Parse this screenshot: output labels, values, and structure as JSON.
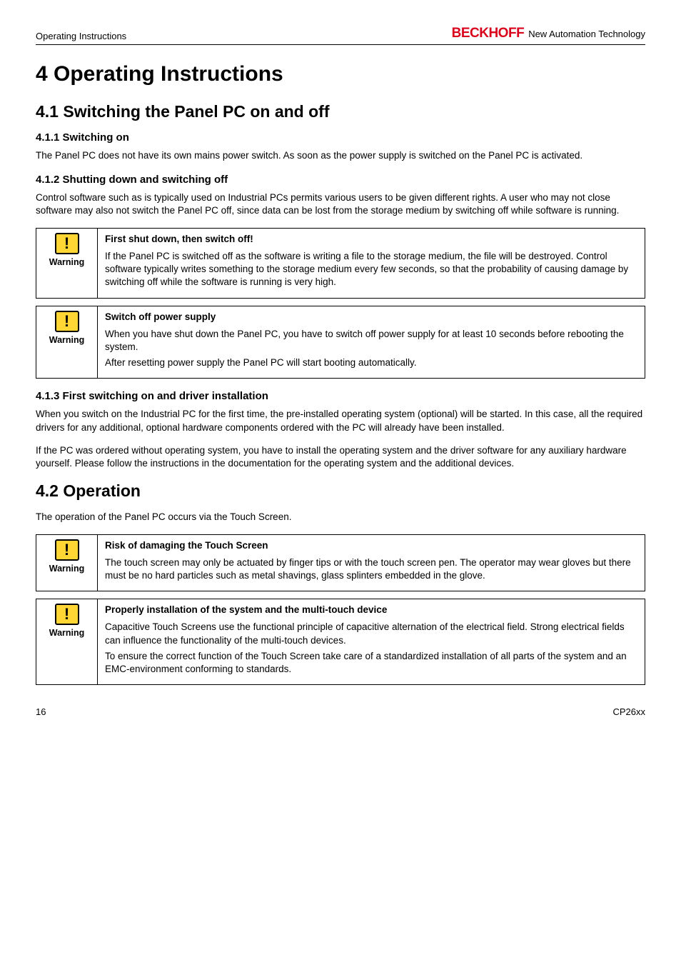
{
  "header": {
    "left": "Operating Instructions",
    "brand": "BECKHOFF",
    "tagline": "New Automation Technology"
  },
  "chapter": {
    "title": "4  Operating Instructions"
  },
  "section_41": {
    "title": "4.1 Switching the Panel PC on and off",
    "sub_411": {
      "title": "4.1.1  Switching on",
      "p1": "The Panel PC does not have its own mains power switch. As soon as the power supply is switched on the Panel PC is activated."
    },
    "sub_412": {
      "title": "4.1.2  Shutting down and switching off",
      "p1": "Control software such as is typically used on Industrial PCs permits various users to be given different rights. A user who may not close software may also not switch the Panel PC off, since data can be lost from the storage medium by switching off while software is running.",
      "warn1": {
        "label": "Warning",
        "title": "First shut down, then switch off!",
        "body": "If the Panel PC is switched off as the software is writing a file to the storage medium, the file will be destroyed. Control software typically writes something to the storage medium every few seconds, so that the probability of causing damage by switching off while the software is running is very high."
      },
      "warn2": {
        "label": "Warning",
        "title": "Switch off power supply",
        "body1": "When you have shut down the Panel PC, you have to switch off power supply for at least 10 seconds before rebooting the system.",
        "body2": "After resetting power supply the Panel PC will start booting automatically."
      }
    },
    "sub_413": {
      "title": "4.1.3  First switching on and driver installation",
      "p1": "When you switch on the Industrial PC for the first time, the pre-installed operating system (optional) will be started. In this case, all the required drivers for any additional, optional hardware components ordered with the PC will already have been installed.",
      "p2": "If the PC was ordered without operating system, you have to install the operating system and the driver software for any auxiliary hardware yourself. Please follow the instructions in the documentation for the operating system and the additional devices."
    }
  },
  "section_42": {
    "title": "4.2 Operation",
    "p1": "The operation of the Panel PC occurs via the Touch Screen.",
    "warn1": {
      "label": "Warning",
      "title": "Risk of damaging the Touch Screen",
      "body": "The touch screen may only be actuated by finger tips or with the touch screen pen. The operator may wear gloves but there must be no hard particles such as metal shavings, glass splinters embedded in the glove."
    },
    "warn2": {
      "label": "Warning",
      "title": "Properly installation of the system and the multi-touch device",
      "body1": "Capacitive Touch Screens use the functional principle of capacitive alternation of the electrical field. Strong electrical fields can influence the functionality of the multi-touch devices.",
      "body2": "To ensure the correct function of the Touch Screen take care of a standardized installation of all parts of the system and an EMC-environment conforming to standards."
    }
  },
  "footer": {
    "page": "16",
    "doc": "CP26xx"
  },
  "colors": {
    "brand_red": "#d9001b",
    "warn_yellow": "#ffd633"
  }
}
